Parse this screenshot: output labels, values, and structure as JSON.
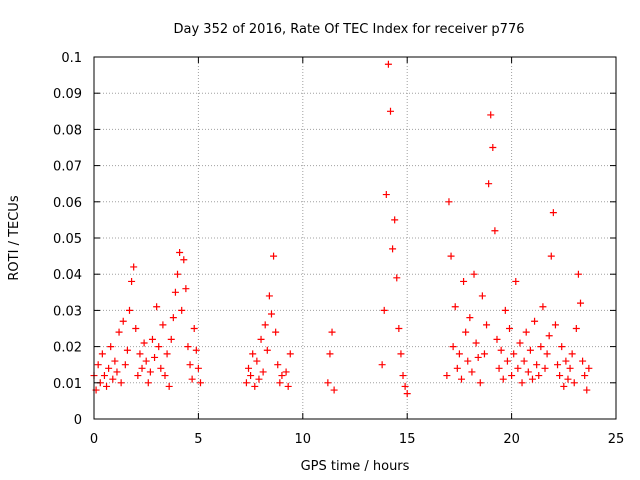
{
  "chart_data": {
    "type": "scatter",
    "title": "Day 352 of 2016, Rate Of TEC Index for receiver p776",
    "xlabel": "GPS time / hours",
    "ylabel": "ROTI / TECUs",
    "xlim": [
      0,
      25
    ],
    "ylim": [
      0,
      0.1
    ],
    "xticks": [
      "0",
      "5",
      "10",
      "15",
      "20",
      "25"
    ],
    "yticks": [
      "0",
      "0.01",
      "0.02",
      "0.03",
      "0.04",
      "0.05",
      "0.06",
      "0.07",
      "0.08",
      "0.09",
      "0.1"
    ],
    "grid": true,
    "marker": "+",
    "color": "#ff0000",
    "series": [
      {
        "values": [
          [
            0.0,
            0.012
          ],
          [
            0.1,
            0.008
          ],
          [
            0.2,
            0.015
          ],
          [
            0.3,
            0.01
          ],
          [
            0.4,
            0.018
          ],
          [
            0.5,
            0.012
          ],
          [
            0.6,
            0.009
          ],
          [
            0.7,
            0.014
          ],
          [
            0.8,
            0.02
          ],
          [
            0.9,
            0.011
          ],
          [
            1.0,
            0.016
          ],
          [
            1.1,
            0.013
          ],
          [
            1.2,
            0.024
          ],
          [
            1.3,
            0.01
          ],
          [
            1.4,
            0.027
          ],
          [
            1.5,
            0.015
          ],
          [
            1.6,
            0.019
          ],
          [
            1.7,
            0.03
          ],
          [
            1.8,
            0.038
          ],
          [
            1.9,
            0.042
          ],
          [
            2.0,
            0.025
          ],
          [
            2.1,
            0.012
          ],
          [
            2.2,
            0.018
          ],
          [
            2.3,
            0.014
          ],
          [
            2.4,
            0.021
          ],
          [
            2.5,
            0.016
          ],
          [
            2.6,
            0.01
          ],
          [
            2.7,
            0.013
          ],
          [
            2.8,
            0.022
          ],
          [
            2.9,
            0.017
          ],
          [
            3.0,
            0.031
          ],
          [
            3.1,
            0.02
          ],
          [
            3.2,
            0.014
          ],
          [
            3.3,
            0.026
          ],
          [
            3.4,
            0.012
          ],
          [
            3.5,
            0.018
          ],
          [
            3.6,
            0.009
          ],
          [
            3.7,
            0.022
          ],
          [
            3.8,
            0.028
          ],
          [
            3.9,
            0.035
          ],
          [
            4.0,
            0.04
          ],
          [
            4.1,
            0.046
          ],
          [
            4.2,
            0.03
          ],
          [
            4.3,
            0.044
          ],
          [
            4.4,
            0.036
          ],
          [
            4.5,
            0.02
          ],
          [
            4.6,
            0.015
          ],
          [
            4.7,
            0.011
          ],
          [
            4.8,
            0.025
          ],
          [
            4.9,
            0.019
          ],
          [
            5.0,
            0.014
          ],
          [
            5.1,
            0.01
          ],
          [
            7.3,
            0.01
          ],
          [
            7.4,
            0.014
          ],
          [
            7.5,
            0.012
          ],
          [
            7.6,
            0.018
          ],
          [
            7.7,
            0.009
          ],
          [
            7.8,
            0.016
          ],
          [
            7.9,
            0.011
          ],
          [
            8.0,
            0.022
          ],
          [
            8.1,
            0.013
          ],
          [
            8.2,
            0.026
          ],
          [
            8.3,
            0.019
          ],
          [
            8.4,
            0.034
          ],
          [
            8.5,
            0.029
          ],
          [
            8.6,
            0.045
          ],
          [
            8.7,
            0.024
          ],
          [
            8.8,
            0.015
          ],
          [
            8.9,
            0.01
          ],
          [
            9.0,
            0.012
          ],
          [
            9.2,
            0.013
          ],
          [
            9.3,
            0.009
          ],
          [
            9.4,
            0.018
          ],
          [
            11.2,
            0.01
          ],
          [
            11.3,
            0.018
          ],
          [
            11.4,
            0.024
          ],
          [
            11.5,
            0.008
          ],
          [
            13.8,
            0.015
          ],
          [
            13.9,
            0.03
          ],
          [
            14.0,
            0.062
          ],
          [
            14.1,
            0.098
          ],
          [
            14.2,
            0.085
          ],
          [
            14.3,
            0.047
          ],
          [
            14.4,
            0.055
          ],
          [
            14.5,
            0.039
          ],
          [
            14.6,
            0.025
          ],
          [
            14.7,
            0.018
          ],
          [
            14.8,
            0.012
          ],
          [
            14.9,
            0.009
          ],
          [
            15.0,
            0.007
          ],
          [
            16.9,
            0.012
          ],
          [
            17.0,
            0.06
          ],
          [
            17.1,
            0.045
          ],
          [
            17.2,
            0.02
          ],
          [
            17.3,
            0.031
          ],
          [
            17.4,
            0.014
          ],
          [
            17.5,
            0.018
          ],
          [
            17.6,
            0.011
          ],
          [
            17.7,
            0.038
          ],
          [
            17.8,
            0.024
          ],
          [
            17.9,
            0.016
          ],
          [
            18.0,
            0.028
          ],
          [
            18.1,
            0.013
          ],
          [
            18.2,
            0.04
          ],
          [
            18.3,
            0.021
          ],
          [
            18.4,
            0.017
          ],
          [
            18.5,
            0.01
          ],
          [
            18.6,
            0.034
          ],
          [
            18.7,
            0.018
          ],
          [
            18.8,
            0.026
          ],
          [
            18.9,
            0.065
          ],
          [
            19.0,
            0.084
          ],
          [
            19.1,
            0.075
          ],
          [
            19.2,
            0.052
          ],
          [
            19.3,
            0.022
          ],
          [
            19.4,
            0.014
          ],
          [
            19.5,
            0.019
          ],
          [
            19.6,
            0.011
          ],
          [
            19.7,
            0.03
          ],
          [
            19.8,
            0.016
          ],
          [
            19.9,
            0.025
          ],
          [
            20.0,
            0.012
          ],
          [
            20.1,
            0.018
          ],
          [
            20.2,
            0.038
          ],
          [
            20.3,
            0.014
          ],
          [
            20.4,
            0.021
          ],
          [
            20.5,
            0.01
          ],
          [
            20.6,
            0.016
          ],
          [
            20.7,
            0.024
          ],
          [
            20.8,
            0.013
          ],
          [
            20.9,
            0.019
          ],
          [
            21.0,
            0.011
          ],
          [
            21.1,
            0.027
          ],
          [
            21.2,
            0.015
          ],
          [
            21.3,
            0.012
          ],
          [
            21.4,
            0.02
          ],
          [
            21.5,
            0.031
          ],
          [
            21.6,
            0.014
          ],
          [
            21.7,
            0.018
          ],
          [
            21.8,
            0.023
          ],
          [
            21.9,
            0.045
          ],
          [
            22.0,
            0.057
          ],
          [
            22.1,
            0.026
          ],
          [
            22.2,
            0.015
          ],
          [
            22.3,
            0.012
          ],
          [
            22.4,
            0.02
          ],
          [
            22.5,
            0.009
          ],
          [
            22.6,
            0.016
          ],
          [
            22.7,
            0.011
          ],
          [
            22.8,
            0.014
          ],
          [
            22.9,
            0.018
          ],
          [
            23.0,
            0.01
          ],
          [
            23.1,
            0.025
          ],
          [
            23.2,
            0.04
          ],
          [
            23.3,
            0.032
          ],
          [
            23.4,
            0.016
          ],
          [
            23.5,
            0.012
          ],
          [
            23.6,
            0.008
          ],
          [
            23.7,
            0.014
          ]
        ]
      }
    ]
  }
}
